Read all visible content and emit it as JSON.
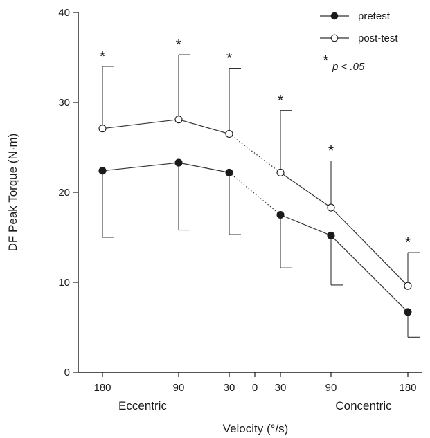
{
  "chart_data": {
    "type": "line",
    "ylabel": "DF Peak Torque (N·m)",
    "xlabel": "Velocity (°/s)",
    "ylim": [
      0,
      40
    ],
    "yticks": [
      0,
      10,
      20,
      30,
      40
    ],
    "x_ticks": [
      "180",
      "90",
      "30",
      "0",
      "30",
      "90",
      "180"
    ],
    "group_labels": [
      "Eccentric",
      "Concentric"
    ],
    "categories": [
      "Eccentric 180",
      "Eccentric 90",
      "Eccentric 30",
      "Concentric 30",
      "Concentric 90",
      "Concentric 180"
    ],
    "series": [
      {
        "name": "pretest",
        "marker": "filled",
        "color": "#1a1a1a",
        "values": [
          22.4,
          23.3,
          22.2,
          17.5,
          15.2,
          6.7
        ],
        "error_minus": [
          7.4,
          7.5,
          6.9,
          5.9,
          5.5,
          2.8
        ]
      },
      {
        "name": "post-test",
        "marker": "open",
        "color": "#ffffff",
        "values": [
          27.1,
          28.1,
          26.5,
          22.2,
          18.3,
          9.6
        ],
        "error_plus": [
          6.9,
          7.2,
          7.3,
          6.9,
          5.2,
          3.7
        ]
      }
    ],
    "significance_marker": "*",
    "significant_categories": [
      "Eccentric 180",
      "Eccentric 90",
      "Eccentric 30",
      "Concentric 30",
      "Concentric 90",
      "Concentric 180"
    ],
    "legend": {
      "position": "top-right",
      "entries": [
        "pretest",
        "post-test"
      ],
      "note_star": "*",
      "note_text": "p < .05"
    }
  }
}
